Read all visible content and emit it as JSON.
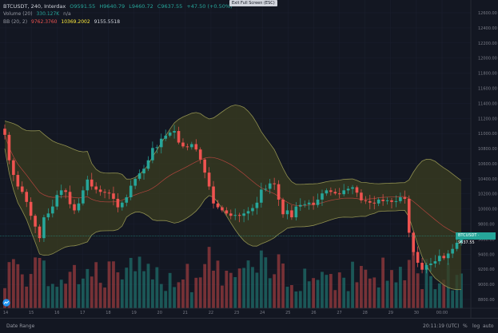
{
  "legend": {
    "symbol": "BTCUSDT, 240, Interdax",
    "open": "O9591.55",
    "high": "H9640.79",
    "low": "L9460.72",
    "close": "C9637.55",
    "change": "+47.50 (+0.50%)",
    "volume_label": "Volume (20)",
    "volume_value": "330.127K",
    "volume_na": "n/a",
    "bb_label": "BB (20, 2)",
    "bb_mid": "9762.3760",
    "bb_upper": "10369.2002",
    "bb_lower": "9155.5518"
  },
  "tooltip": "Exit Full Screen (ESC)",
  "price_badge": "BTCUSDT · 9637.55",
  "bottom": {
    "date_range": "Date Range",
    "clock": "20:11:19 (UTC)",
    "percent": "%",
    "log": "log",
    "auto": "auto"
  },
  "colors": {
    "background": "#131722",
    "up": "#26a69a",
    "down": "#ef5350",
    "band_fill": "#3b3d20",
    "band_line": "#8f8f4f",
    "basis": "#b2453d"
  },
  "chart_data": {
    "type": "candlestick",
    "y_ticks": [
      "12600.00",
      "12400.00",
      "12200.00",
      "12000.00",
      "11800.00",
      "11600.00",
      "11400.00",
      "11200.00",
      "11000.00",
      "10800.00",
      "10600.00",
      "10400.00",
      "10200.00",
      "10000.00",
      "9800.00",
      "9600.00",
      "9400.00",
      "9200.00",
      "9000.00",
      "8800.00"
    ],
    "x_ticks": [
      "14",
      "15",
      "16",
      "17",
      "18",
      "19",
      "20",
      "21",
      "22",
      "23",
      "24",
      "25",
      "26",
      "27",
      "28",
      "29",
      "30",
      "00:00"
    ],
    "ylim": [
      8700,
      12700
    ],
    "close_series": [
      10950,
      10620,
      10430,
      10280,
      10210,
      10080,
      9900,
      9760,
      9610,
      9880,
      9930,
      10020,
      10170,
      10230,
      10210,
      10050,
      9970,
      10060,
      10230,
      10370,
      10280,
      10240,
      10210,
      10200,
      10190,
      10120,
      10010,
      10070,
      10140,
      10290,
      10380,
      10450,
      10510,
      10620,
      10780,
      10790,
      10900,
      10940,
      10980,
      11000,
      10850,
      10800,
      10790,
      10830,
      10760,
      10630,
      10460,
      10280,
      10060,
      10010,
      9970,
      9930,
      9900,
      9910,
      9900,
      9930,
      9960,
      10000,
      10070,
      10240,
      10250,
      10320,
      10310,
      10110,
      9920,
      9970,
      9880,
      10020,
      10040,
      10050,
      10070,
      10040,
      10110,
      10190,
      10230,
      10210,
      10190,
      10180,
      10230,
      10250,
      10270,
      10200,
      10100,
      10090,
      10070,
      10060,
      10110,
      10090,
      10100,
      10080,
      10090,
      10140,
      10120,
      9680,
      9430,
      9290,
      9200,
      9260,
      9280,
      9310,
      9380,
      9350,
      9410,
      9470,
      9550,
      9638
    ]
  }
}
